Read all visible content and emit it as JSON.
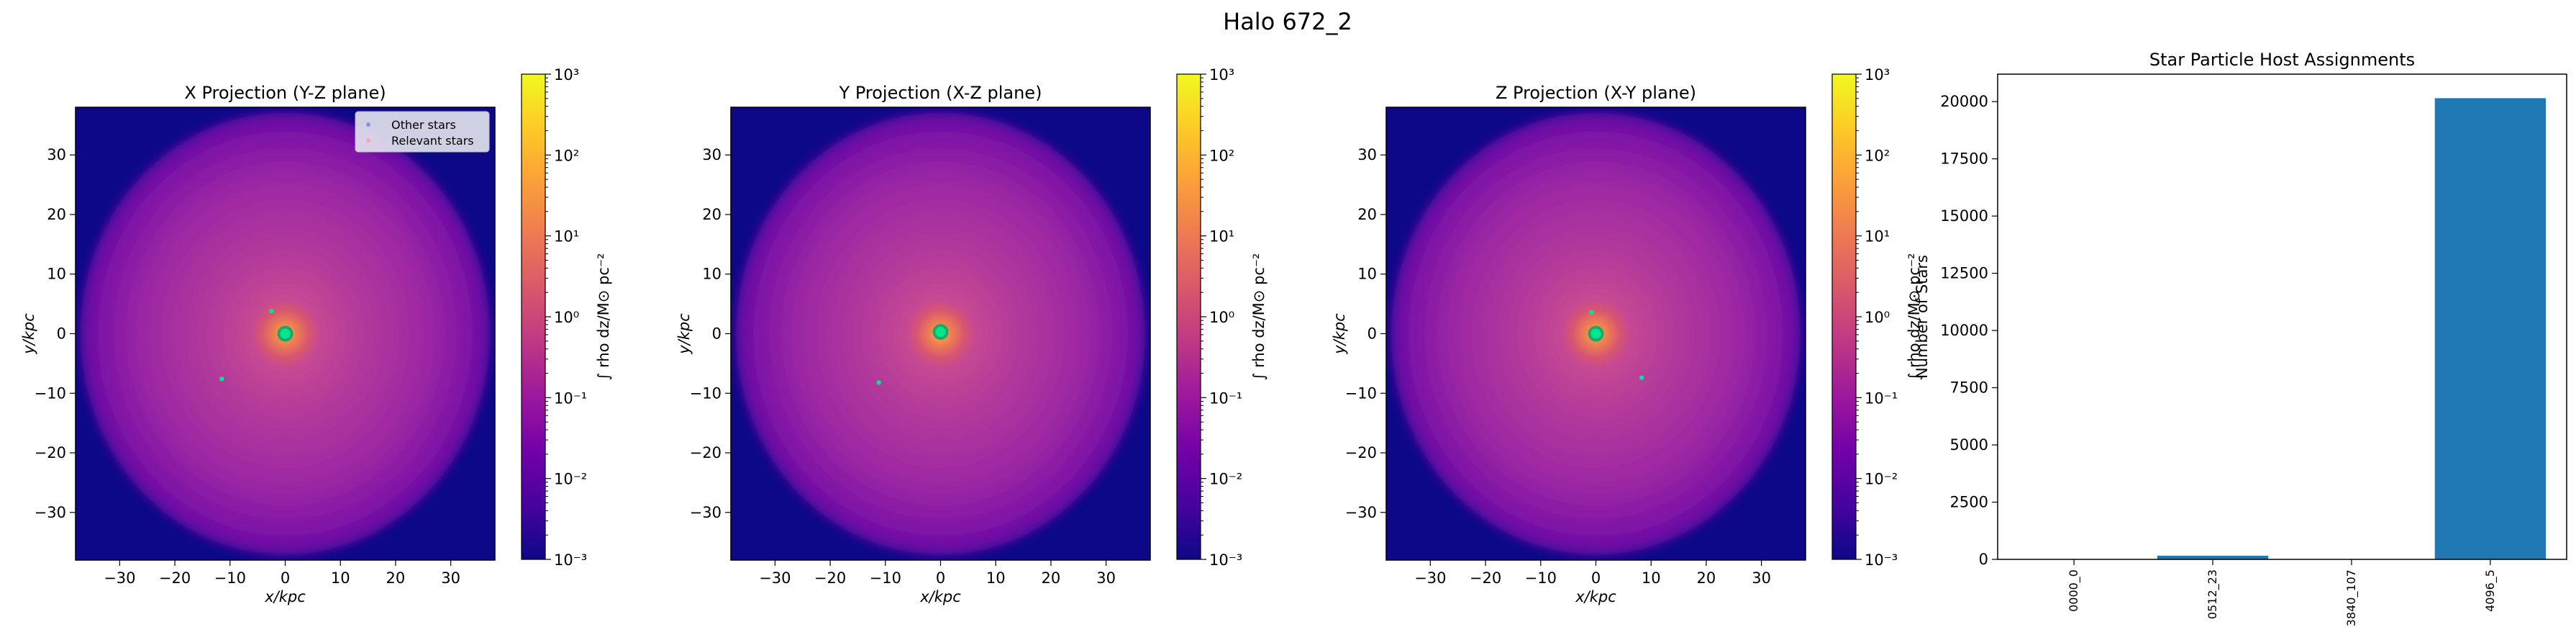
{
  "figure": {
    "suptitle": "Halo 672_2"
  },
  "colors": {
    "plasma": [
      "#0d0887",
      "#46039f",
      "#7201a8",
      "#9c179e",
      "#bd3786",
      "#d8576b",
      "#ed7953",
      "#fb9f3a",
      "#fdca26",
      "#f0f921"
    ],
    "bar": "#1f77b4",
    "stars_core": "#00e68c",
    "stars_relevant": "#f4a6b4",
    "legend_bg": "#e6e6f0"
  },
  "chart_data": [
    {
      "type": "heatmap",
      "title": "X Projection (Y-Z plane)",
      "xlabel": "x/kpc",
      "ylabel": "y/kpc",
      "xlim": [
        -38,
        38
      ],
      "ylim": [
        -38,
        38
      ],
      "xticks": [
        -30,
        -20,
        -10,
        0,
        10,
        20,
        30
      ],
      "yticks": [
        -30,
        -20,
        -10,
        0,
        10,
        20,
        30
      ],
      "colorbar": {
        "label": "∫ rho dz/M⊙ pc⁻²",
        "scale": "log",
        "range": [
          0.001,
          1000
        ],
        "ticks": [
          "10⁻³",
          "10⁻²",
          "10⁻¹",
          "10⁰",
          "10¹",
          "10²",
          "10³"
        ]
      },
      "legend": {
        "position": "top-right",
        "entries": [
          "Other stars",
          "Relevant stars"
        ]
      },
      "stars": [
        {
          "x": 0,
          "y": 0,
          "kind": "core"
        },
        {
          "x": -2.5,
          "y": 3.8,
          "kind": "point"
        },
        {
          "x": -11.5,
          "y": -7.6,
          "kind": "point"
        }
      ]
    },
    {
      "type": "heatmap",
      "title": "Y Projection (X-Z plane)",
      "xlabel": "x/kpc",
      "ylabel": "y/kpc",
      "xlim": [
        -38,
        38
      ],
      "ylim": [
        -38,
        38
      ],
      "xticks": [
        -30,
        -20,
        -10,
        0,
        10,
        20,
        30
      ],
      "yticks": [
        -30,
        -20,
        -10,
        0,
        10,
        20,
        30
      ],
      "colorbar": {
        "label": "∫ rho dz/M⊙ pc⁻²",
        "scale": "log",
        "range": [
          0.001,
          1000
        ],
        "ticks": [
          "10⁻³",
          "10⁻²",
          "10⁻¹",
          "10⁰",
          "10¹",
          "10²",
          "10³"
        ]
      },
      "stars": [
        {
          "x": 0,
          "y": 0.3,
          "kind": "core"
        },
        {
          "x": -11.2,
          "y": -8.2,
          "kind": "point"
        }
      ]
    },
    {
      "type": "heatmap",
      "title": "Z Projection (X-Y plane)",
      "xlabel": "x/kpc",
      "ylabel": "y/kpc",
      "xlim": [
        -38,
        38
      ],
      "ylim": [
        -38,
        38
      ],
      "xticks": [
        -30,
        -20,
        -10,
        0,
        10,
        20,
        30
      ],
      "yticks": [
        -30,
        -20,
        -10,
        0,
        10,
        20,
        30
      ],
      "colorbar": {
        "label": "∫ rho dz/M⊙ pc⁻²",
        "scale": "log",
        "range": [
          0.001,
          1000
        ],
        "ticks": [
          "10⁻³",
          "10⁻²",
          "10⁻¹",
          "10⁰",
          "10¹",
          "10²",
          "10³"
        ]
      },
      "stars": [
        {
          "x": 0,
          "y": 0,
          "kind": "core"
        },
        {
          "x": -0.8,
          "y": 3.6,
          "kind": "point"
        },
        {
          "x": 8.3,
          "y": -7.4,
          "kind": "point"
        }
      ]
    },
    {
      "type": "bar",
      "title": "Star Particle Host Assignments",
      "xlabel": "",
      "ylabel": "Number of Stars",
      "ylim": [
        0,
        21200
      ],
      "yticks": [
        0,
        2500,
        5000,
        7500,
        10000,
        12500,
        15000,
        17500,
        20000
      ],
      "categories": [
        "0000_0",
        "0512_23",
        "3840_107",
        "4096_5"
      ],
      "values": [
        8,
        160,
        6,
        20150
      ]
    }
  ]
}
